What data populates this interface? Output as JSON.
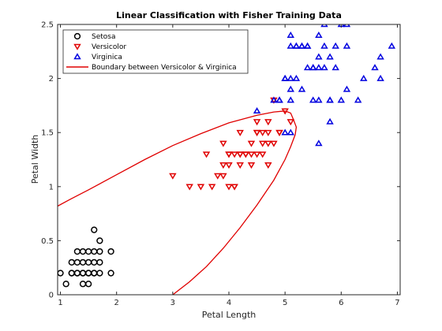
{
  "chart_data": {
    "type": "scatter",
    "title": "Linear Classification with Fisher Training Data",
    "xlabel": "Petal Length",
    "ylabel": "Petal Width",
    "xlim": [
      0.95,
      7.05
    ],
    "ylim": [
      0,
      2.5
    ],
    "xticks": [
      1,
      2,
      3,
      4,
      5,
      6,
      7
    ],
    "yticks": [
      0,
      0.5,
      1,
      1.5,
      2,
      2.5
    ],
    "xtick_labels": [
      "1",
      "2",
      "3",
      "4",
      "5",
      "6",
      "7"
    ],
    "ytick_labels": [
      "0",
      "0.5",
      "1",
      "1.5",
      "2",
      "2.5"
    ],
    "grid": false,
    "legend_position": "top-left",
    "series": [
      {
        "name": "Setosa",
        "marker": "circle",
        "color": "#000000",
        "points": [
          [
            1.0,
            0.2
          ],
          [
            1.1,
            0.1
          ],
          [
            1.2,
            0.2
          ],
          [
            1.3,
            0.2
          ],
          [
            1.3,
            0.3
          ],
          [
            1.3,
            0.4
          ],
          [
            1.4,
            0.2
          ],
          [
            1.4,
            0.3
          ],
          [
            1.4,
            0.1
          ],
          [
            1.5,
            0.2
          ],
          [
            1.5,
            0.4
          ],
          [
            1.5,
            0.1
          ],
          [
            1.5,
            0.3
          ],
          [
            1.6,
            0.2
          ],
          [
            1.6,
            0.4
          ],
          [
            1.6,
            0.6
          ],
          [
            1.4,
            0.4
          ],
          [
            1.6,
            0.3
          ],
          [
            1.7,
            0.2
          ],
          [
            1.7,
            0.4
          ],
          [
            1.7,
            0.5
          ],
          [
            1.7,
            0.3
          ],
          [
            1.9,
            0.2
          ],
          [
            1.9,
            0.4
          ],
          [
            1.2,
            0.2
          ],
          [
            1.5,
            0.2
          ],
          [
            1.6,
            0.2
          ],
          [
            1.3,
            0.2
          ],
          [
            1.4,
            0.2
          ],
          [
            1.2,
            0.3
          ]
        ]
      },
      {
        "name": "Versicolor",
        "marker": "triangle-down",
        "color": "#e00000",
        "points": [
          [
            3.0,
            1.1
          ],
          [
            3.3,
            1.0
          ],
          [
            3.5,
            1.0
          ],
          [
            3.6,
            1.3
          ],
          [
            3.7,
            1.0
          ],
          [
            3.8,
            1.1
          ],
          [
            3.9,
            1.1
          ],
          [
            3.9,
            1.2
          ],
          [
            3.9,
            1.4
          ],
          [
            4.0,
            1.0
          ],
          [
            4.0,
            1.2
          ],
          [
            4.0,
            1.3
          ],
          [
            4.1,
            1.0
          ],
          [
            4.1,
            1.3
          ],
          [
            4.2,
            1.2
          ],
          [
            4.2,
            1.3
          ],
          [
            4.2,
            1.5
          ],
          [
            4.3,
            1.3
          ],
          [
            4.4,
            1.2
          ],
          [
            4.4,
            1.3
          ],
          [
            4.4,
            1.4
          ],
          [
            4.5,
            1.3
          ],
          [
            4.5,
            1.5
          ],
          [
            4.5,
            1.6
          ],
          [
            4.6,
            1.3
          ],
          [
            4.6,
            1.4
          ],
          [
            4.6,
            1.5
          ],
          [
            4.7,
            1.2
          ],
          [
            4.7,
            1.4
          ],
          [
            4.7,
            1.5
          ],
          [
            4.7,
            1.6
          ],
          [
            4.8,
            1.4
          ],
          [
            4.8,
            1.8
          ],
          [
            4.9,
            1.5
          ],
          [
            5.0,
            1.7
          ],
          [
            5.1,
            1.6
          ],
          [
            4.1,
            1.0
          ],
          [
            4.3,
            1.3
          ],
          [
            4.0,
            1.3
          ],
          [
            4.5,
            1.5
          ],
          [
            4.9,
            1.5
          ],
          [
            4.2,
            1.3
          ]
        ]
      },
      {
        "name": "Virginica",
        "marker": "triangle-up",
        "color": "#0000e0",
        "points": [
          [
            4.5,
            1.7
          ],
          [
            4.8,
            1.8
          ],
          [
            4.9,
            1.8
          ],
          [
            5.0,
            1.5
          ],
          [
            5.0,
            2.0
          ],
          [
            5.1,
            1.5
          ],
          [
            5.1,
            1.8
          ],
          [
            5.1,
            1.9
          ],
          [
            5.1,
            2.0
          ],
          [
            5.1,
            2.3
          ],
          [
            5.2,
            2.0
          ],
          [
            5.2,
            2.3
          ],
          [
            5.3,
            1.9
          ],
          [
            5.3,
            2.3
          ],
          [
            5.4,
            2.1
          ],
          [
            5.4,
            2.3
          ],
          [
            5.5,
            1.8
          ],
          [
            5.5,
            2.1
          ],
          [
            5.6,
            1.4
          ],
          [
            5.6,
            1.8
          ],
          [
            5.6,
            2.1
          ],
          [
            5.6,
            2.2
          ],
          [
            5.6,
            2.4
          ],
          [
            5.7,
            2.1
          ],
          [
            5.7,
            2.3
          ],
          [
            5.7,
            2.5
          ],
          [
            5.8,
            1.6
          ],
          [
            5.8,
            1.8
          ],
          [
            5.8,
            2.2
          ],
          [
            5.9,
            2.1
          ],
          [
            5.9,
            2.3
          ],
          [
            6.0,
            1.8
          ],
          [
            6.0,
            2.5
          ],
          [
            6.1,
            1.9
          ],
          [
            6.1,
            2.3
          ],
          [
            6.1,
            2.5
          ],
          [
            6.3,
            1.8
          ],
          [
            6.4,
            2.0
          ],
          [
            6.6,
            2.1
          ],
          [
            6.7,
            2.0
          ],
          [
            6.7,
            2.2
          ],
          [
            6.9,
            2.3
          ],
          [
            5.2,
            2.3
          ],
          [
            5.4,
            2.3
          ],
          [
            5.5,
            2.1
          ],
          [
            5.3,
            2.3
          ],
          [
            5.0,
            2.0
          ],
          [
            4.9,
            1.8
          ],
          [
            5.8,
            1.8
          ],
          [
            5.1,
            2.4
          ]
        ]
      },
      {
        "name": "Boundary between Versicolor & Virginica",
        "marker": "line",
        "color": "#e00000",
        "points": [
          [
            0.95,
            0.82
          ],
          [
            1.2,
            0.89
          ],
          [
            1.5,
            0.97
          ],
          [
            2.0,
            1.11
          ],
          [
            2.5,
            1.25
          ],
          [
            3.0,
            1.38
          ],
          [
            3.5,
            1.49
          ],
          [
            4.0,
            1.59
          ],
          [
            4.5,
            1.66
          ],
          [
            4.8,
            1.69
          ],
          [
            5.0,
            1.7
          ],
          [
            5.1,
            1.68
          ],
          [
            5.15,
            1.62
          ],
          [
            5.2,
            1.55
          ],
          [
            5.18,
            1.48
          ],
          [
            5.1,
            1.37
          ],
          [
            5.0,
            1.25
          ],
          [
            4.8,
            1.06
          ],
          [
            4.5,
            0.83
          ],
          [
            4.2,
            0.62
          ],
          [
            3.9,
            0.43
          ],
          [
            3.6,
            0.26
          ],
          [
            3.3,
            0.12
          ],
          [
            3.0,
            0.0
          ]
        ]
      }
    ]
  }
}
